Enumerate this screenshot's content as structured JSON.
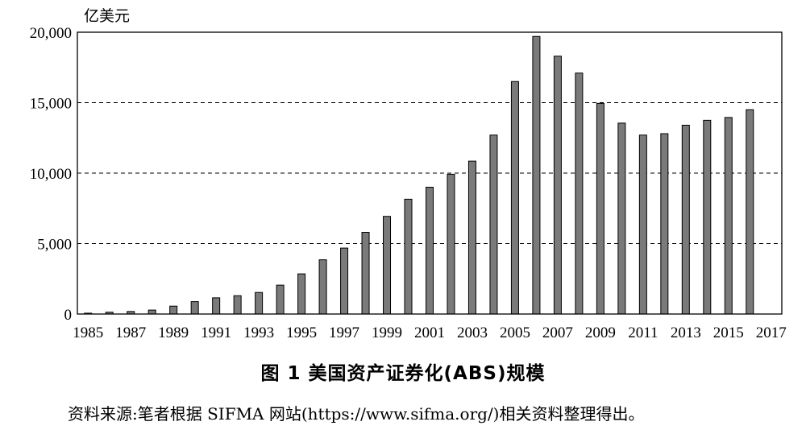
{
  "chart_data": {
    "type": "bar",
    "ylabel": "亿美元",
    "ylim": [
      0,
      20000
    ],
    "yticks": [
      "0",
      "5,000",
      "10,000",
      "15,000",
      "20,000"
    ],
    "grid": "dashed horizontal at 5,000 / 10,000 / 15,000",
    "bar_color": "#7a7a7a",
    "categories": [
      "1985",
      "1986",
      "1987",
      "1988",
      "1989",
      "1990",
      "1991",
      "1992",
      "1993",
      "1994",
      "1995",
      "1996",
      "1997",
      "1998",
      "1999",
      "2000",
      "2001",
      "2002",
      "2003",
      "2004",
      "2005",
      "2006",
      "2007",
      "2008",
      "2009",
      "2010",
      "2011",
      "2012",
      "2013",
      "2014",
      "2015",
      "2016",
      "2017"
    ],
    "xtick_labels": [
      "1985",
      "",
      "1987",
      "",
      "1989",
      "",
      "1991",
      "",
      "1993",
      "",
      "1995",
      "",
      "1997",
      "",
      "1999",
      "",
      "2001",
      "",
      "2003",
      "",
      "2005",
      "",
      "2007",
      "",
      "2009",
      "",
      "2011",
      "",
      "2013",
      "",
      "2015",
      "",
      "2017"
    ],
    "values": [
      60,
      130,
      180,
      280,
      560,
      880,
      1150,
      1300,
      1530,
      2050,
      2850,
      3850,
      4680,
      5800,
      6930,
      8150,
      9000,
      9920,
      10850,
      12700,
      16500,
      19700,
      18300,
      17100,
      14950,
      13550,
      12700,
      12800,
      13400,
      13750,
      13950,
      14500,
      0
    ]
  },
  "caption": "图 1  美国资产证券化(ABS)规模",
  "source": "资料来源:笔者根据 SIFMA 网站(https://www.sifma.org/)相关资料整理得出。"
}
